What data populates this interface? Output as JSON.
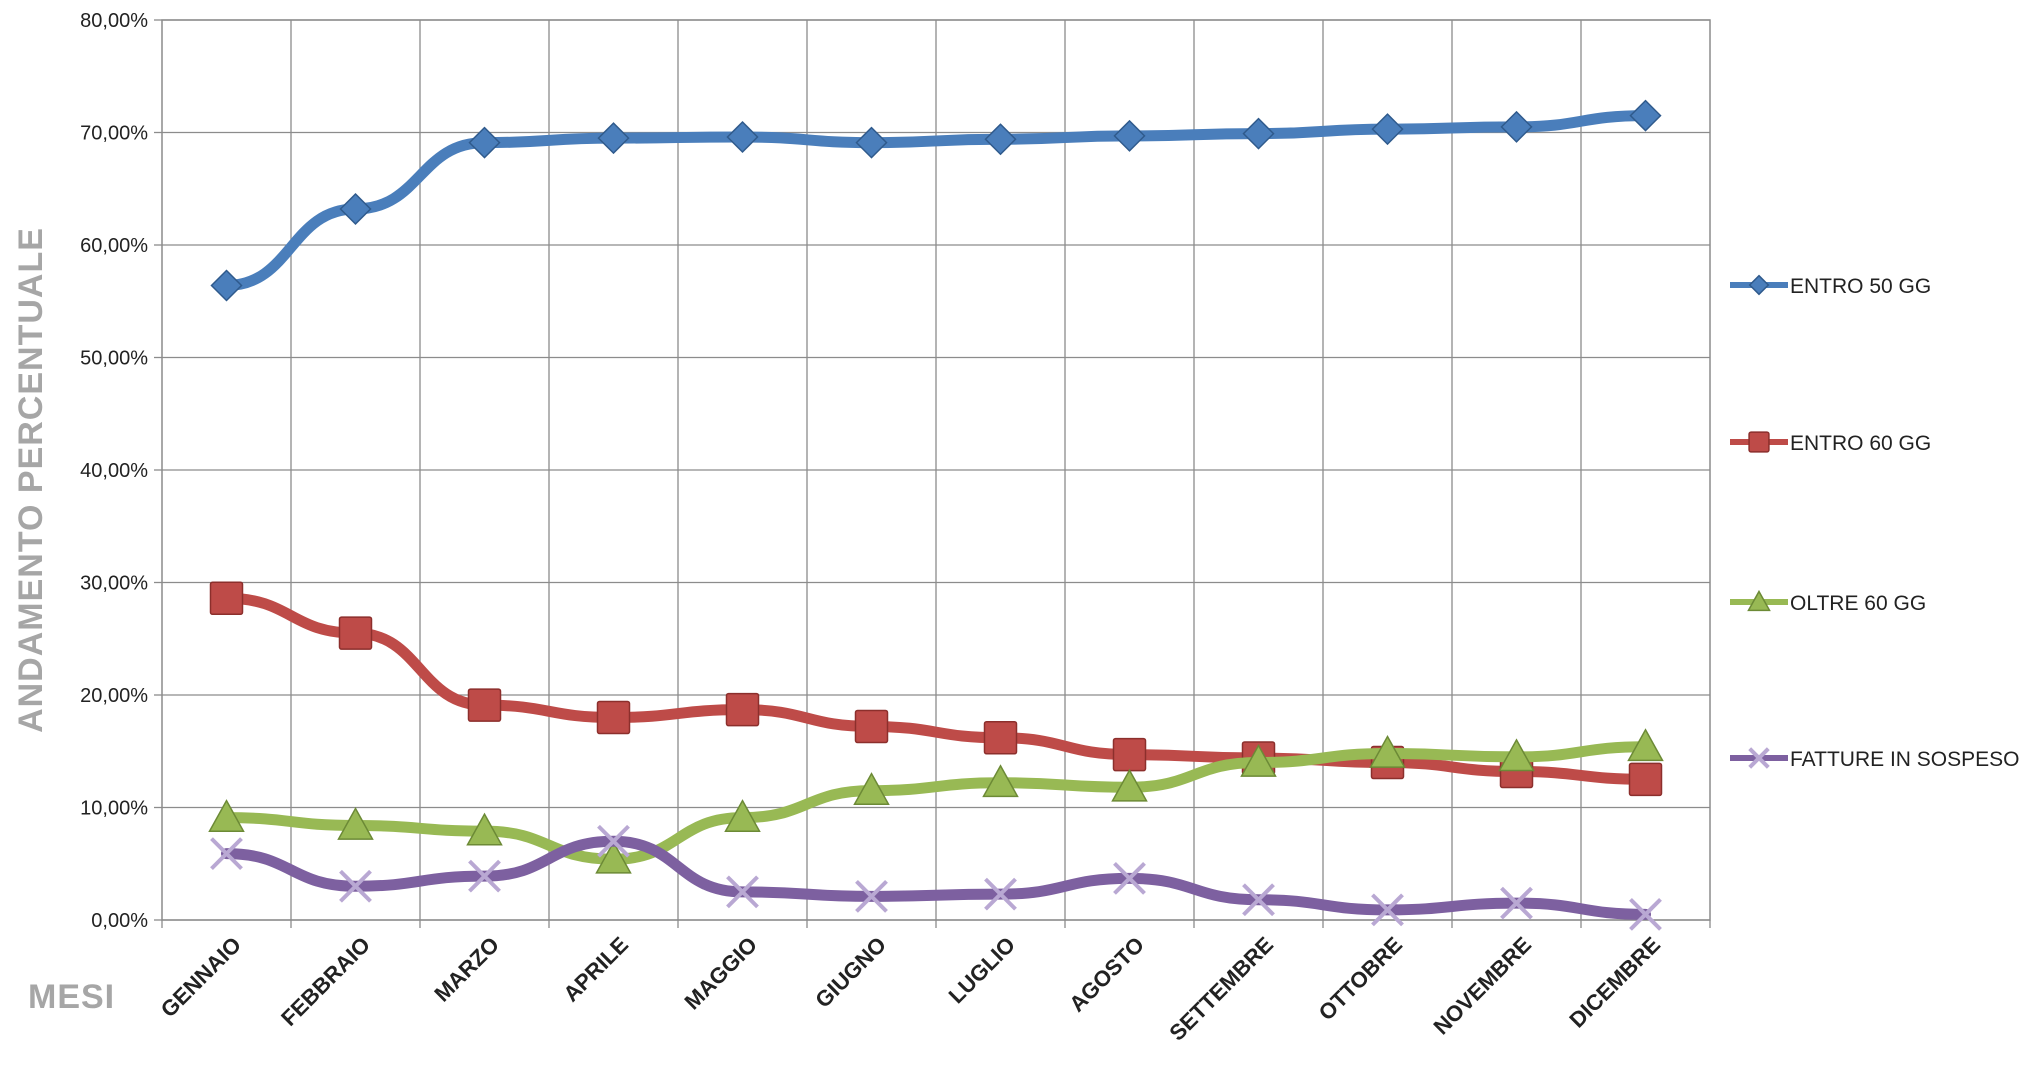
{
  "chart_data": {
    "type": "line",
    "ylabel": "ANDAMENTO PERCENTUALE",
    "xlabel": "MESI",
    "categories": [
      "GENNAIO",
      "FEBBRAIO",
      "MARZO",
      "APRILE",
      "MAGGIO",
      "GIUGNO",
      "LUGLIO",
      "AGOSTO",
      "SETTEMBRE",
      "OTTOBRE",
      "NOVEMBRE",
      "DICEMBRE"
    ],
    "ylim": [
      0,
      80
    ],
    "yticks": [
      "0,00%",
      "10,00%",
      "20,00%",
      "30,00%",
      "40,00%",
      "50,00%",
      "60,00%",
      "70,00%",
      "80,00%"
    ],
    "grid": true,
    "legend": "right",
    "series": [
      {
        "name": "ENTRO 50 GG",
        "color": "#4a7ebb",
        "marker": "diamond",
        "values": [
          56.4,
          63.2,
          69.1,
          69.5,
          69.6,
          69.1,
          69.4,
          69.7,
          69.9,
          70.3,
          70.5,
          71.5
        ]
      },
      {
        "name": "ENTRO 60 GG",
        "color": "#be4b48",
        "marker": "square",
        "values": [
          28.6,
          25.5,
          19.1,
          18.0,
          18.7,
          17.2,
          16.2,
          14.7,
          14.4,
          14.0,
          13.2,
          12.5
        ]
      },
      {
        "name": "OLTRE 60 GG",
        "color": "#98b954",
        "marker": "triangle",
        "values": [
          9.1,
          8.4,
          7.9,
          5.4,
          9.1,
          11.5,
          12.2,
          11.8,
          14.0,
          14.8,
          14.5,
          15.4
        ]
      },
      {
        "name": "FATTURE IN SOSPESO",
        "color": "#7d60a0",
        "marker": "x",
        "values": [
          5.9,
          3.0,
          3.9,
          7.0,
          2.5,
          2.1,
          2.3,
          3.7,
          1.8,
          0.9,
          1.5,
          0.5
        ]
      }
    ]
  }
}
